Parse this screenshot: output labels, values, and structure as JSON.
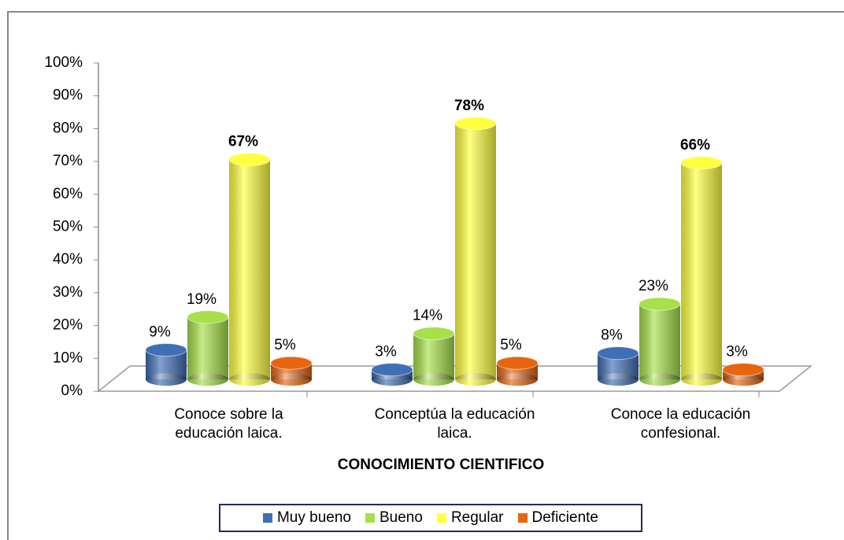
{
  "chart_data": {
    "type": "bar3d",
    "categories": [
      "Conoce sobre la educación laica.",
      "Conceptúa la educación laica.",
      "Conoce la educación confesional."
    ],
    "x_label": "CONOCIMIENTO CIENTIFICO",
    "series": [
      {
        "name": "Muy bueno",
        "color": "#3f6fb5",
        "values": [
          9,
          3,
          8
        ],
        "value_labels": [
          "9%",
          "3%",
          "8%"
        ]
      },
      {
        "name": "Bueno",
        "color": "#a6e04a",
        "values": [
          19,
          14,
          23
        ],
        "value_labels": [
          "19%",
          "14%",
          "23%"
        ]
      },
      {
        "name": "Regular",
        "color": "#ffff40",
        "values": [
          67,
          78,
          66
        ],
        "value_labels": [
          "67%",
          "78%",
          "66%"
        ],
        "bold_labels": true
      },
      {
        "name": "Deficiente",
        "color": "#e8650f",
        "values": [
          5,
          5,
          3
        ],
        "value_labels": [
          "5%",
          "5%",
          "3%"
        ]
      }
    ],
    "ylim": [
      0,
      100
    ],
    "yticks": [
      {
        "value": 0,
        "label": "0%"
      },
      {
        "value": 10,
        "label": "10%"
      },
      {
        "value": 20,
        "label": "20%"
      },
      {
        "value": 30,
        "label": "30%"
      },
      {
        "value": 40,
        "label": "40%"
      },
      {
        "value": 50,
        "label": "50%"
      },
      {
        "value": 60,
        "label": "60%"
      },
      {
        "value": 70,
        "label": "70%"
      },
      {
        "value": 80,
        "label": "80%"
      },
      {
        "value": 90,
        "label": "90%"
      },
      {
        "value": 100,
        "label": "100%"
      }
    ],
    "legend": "bottom"
  }
}
